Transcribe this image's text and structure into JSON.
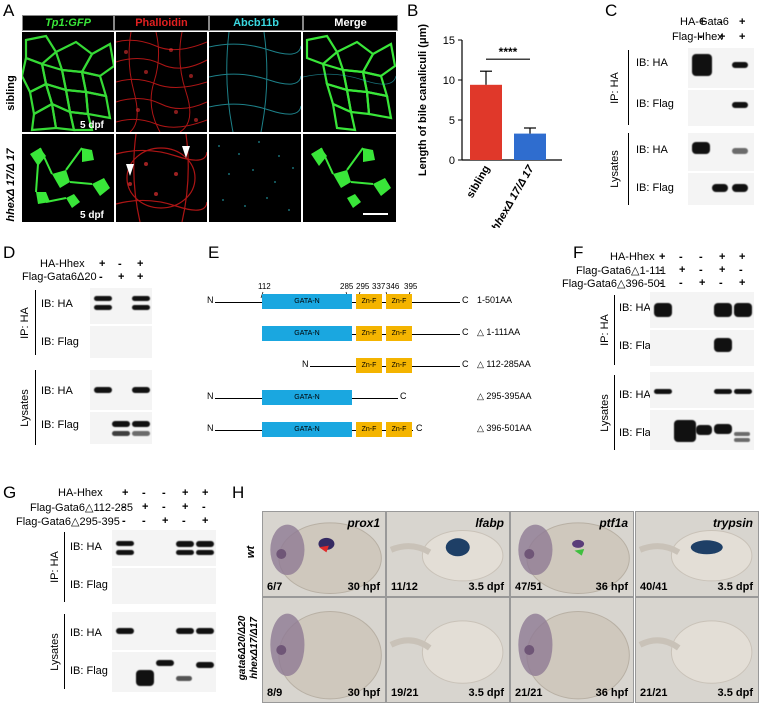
{
  "panels": {
    "A": "A",
    "B": "B",
    "C": "C",
    "D": "D",
    "E": "E",
    "F": "F",
    "G": "G",
    "H": "H"
  },
  "panelA": {
    "columns": [
      "Tp1:GFP",
      "Phalloidin",
      "Abcb11b",
      "Merge"
    ],
    "rows": [
      "sibling",
      "hhexΔ 17/Δ 17"
    ],
    "age_label": "5 dpf",
    "colors": {
      "gfp": "#39e639",
      "phalloidin": "#e02020",
      "abcb11b": "#3ad8e0"
    }
  },
  "chart_data": {
    "type": "bar",
    "categories": [
      "sibling",
      "hhexΔ 17/Δ 17"
    ],
    "values": [
      9.4,
      3.3
    ],
    "errors": [
      1.7,
      0.7
    ],
    "colors": [
      "#e0382a",
      "#2f6dcf"
    ],
    "ylabel": "Length of bile canaliculi (μm)",
    "ylim": [
      0,
      15
    ],
    "yticks": [
      0,
      5,
      10,
      15
    ],
    "significance": "****"
  },
  "panelC": {
    "conditions": [
      {
        "name": "HA-Gata6",
        "signs": [
          "+",
          "-",
          "+"
        ]
      },
      {
        "name": "Flag-Hhex",
        "signs": [
          "-",
          "+",
          "+"
        ]
      }
    ],
    "ip_label": "IP: HA",
    "lysate_label": "Lysates",
    "blots": [
      "IB: HA",
      "IB: Flag",
      "IB: HA",
      "IB: Flag"
    ]
  },
  "panelD": {
    "conditions": [
      {
        "name": "HA-Hhex",
        "signs": [
          "+",
          "-",
          "+"
        ]
      },
      {
        "name": "Flag-Gata6Δ20",
        "signs": [
          "-",
          "+",
          "+"
        ]
      }
    ],
    "ip_label": "IP: HA",
    "lysate_label": "Lysates",
    "blots": [
      "IB: HA",
      "IB: Flag",
      "IB: HA",
      "IB: Flag"
    ]
  },
  "panelE": {
    "positions": [
      "112",
      "285",
      "295",
      "337",
      "346",
      "395"
    ],
    "domains": {
      "gata": "GATA-N",
      "znf": "Zn-F"
    },
    "constructs": [
      {
        "n": "N",
        "c": "C",
        "label": "1-501AA"
      },
      {
        "n": "",
        "c": "C",
        "label": "△ 1-111AA"
      },
      {
        "n": "N",
        "c": "C",
        "label": "△ 112-285AA"
      },
      {
        "n": "N",
        "c": "C",
        "label": "△ 295-395AA"
      },
      {
        "n": "N",
        "c": "C",
        "label": "△ 396-501AA"
      }
    ],
    "colors": {
      "gata": "#1aa7e0",
      "znf": "#f4b400"
    }
  },
  "panelF": {
    "conditions": [
      {
        "name": "HA-Hhex",
        "signs": [
          "+",
          "-",
          "-",
          "+",
          "+"
        ]
      },
      {
        "name": "Flag-Gata6△1-111",
        "signs": [
          "-",
          "+",
          "-",
          "+",
          "-"
        ]
      },
      {
        "name": "Flag-Gata6△396-501",
        "signs": [
          "-",
          "-",
          "+",
          "-",
          "+"
        ]
      }
    ],
    "ip_label": "IP: HA",
    "lysate_label": "Lysates",
    "blots": [
      "IB: HA",
      "IB: Flag",
      "IB: HA",
      "IB: Flag"
    ]
  },
  "panelG": {
    "conditions": [
      {
        "name": "HA-Hhex",
        "signs": [
          "+",
          "-",
          "-",
          "+",
          "+"
        ]
      },
      {
        "name": "Flag-Gata6△112-285",
        "signs": [
          "-",
          "+",
          "-",
          "+",
          "-"
        ]
      },
      {
        "name": "Flag-Gata6△295-395",
        "signs": [
          "-",
          "-",
          "+",
          "-",
          "+"
        ]
      }
    ],
    "ip_label": "IP: HA",
    "lysate_label": "Lysates",
    "blots": [
      "IB: HA",
      "IB: Flag",
      "IB: HA",
      "IB: Flag"
    ]
  },
  "panelH": {
    "genes": [
      "prox1",
      "lfabp",
      "ptf1a",
      "trypsin"
    ],
    "rows": [
      "wt",
      "gata6Δ20/Δ20 hhexΔ17/Δ17"
    ],
    "counts": [
      [
        "6/7",
        "11/12",
        "47/51",
        "40/41"
      ],
      [
        "8/9",
        "19/21",
        "21/21",
        "21/21"
      ]
    ],
    "ages": [
      "30 hpf",
      "3.5 dpf",
      "36 hpf",
      "3.5 dpf"
    ]
  }
}
